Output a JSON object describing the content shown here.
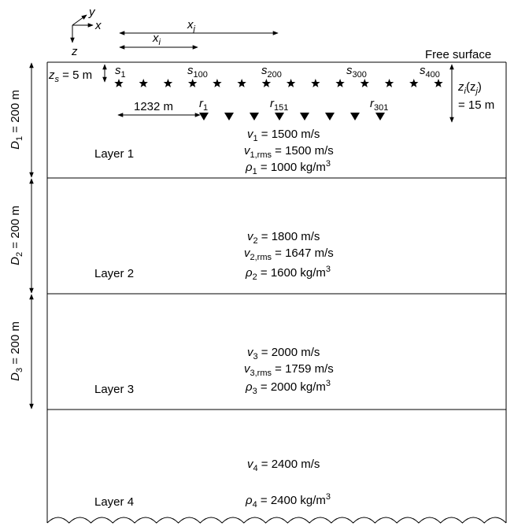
{
  "axes": {
    "x": "x",
    "y": "y",
    "z": "z"
  },
  "offsets": {
    "x_j": "x",
    "x_j_sub": "j",
    "x_i": "x",
    "x_i_sub": "i"
  },
  "free_surface": "Free surface",
  "source_depth": {
    "sym": "z",
    "sub": "s",
    "rest": " = 5 m"
  },
  "receiver_depth": {
    "line1_a": "z",
    "line1_sub": "i",
    "line1_b": "(z",
    "line1_sub2": "j",
    "line1_c": ")",
    "line2": "= 15 m"
  },
  "thicknesses": [
    {
      "sym": "D",
      "sub": "1",
      "rest": " = 200 m"
    },
    {
      "sym": "D",
      "sub": "2",
      "rest": " = 200 m"
    },
    {
      "sym": "D",
      "sub": "3",
      "rest": " = 200 m"
    }
  ],
  "source_labels": [
    {
      "sym": "s",
      "sub": "1"
    },
    {
      "sym": "s",
      "sub": "100"
    },
    {
      "sym": "s",
      "sub": "200"
    },
    {
      "sym": "s",
      "sub": "300"
    },
    {
      "sym": "s",
      "sub": "400"
    }
  ],
  "receiver_labels": [
    {
      "sym": "r",
      "sub": "1"
    },
    {
      "sym": "r",
      "sub": "151"
    },
    {
      "sym": "r",
      "sub": "301"
    }
  ],
  "receiver_offset": "1232 m",
  "star_count": 14,
  "receiver_count": 8,
  "layers": [
    {
      "name": "Layer 1",
      "v": {
        "sym": "v",
        "sub": "1",
        "rest": " = 1500 m/s"
      },
      "vrms": {
        "sym": "v",
        "sub": "1,rms",
        "rest": " = 1500 m/s"
      },
      "rho": {
        "sym": "ρ",
        "sub": "1",
        "rest": " = 1000 kg/m",
        "sup": "3"
      }
    },
    {
      "name": "Layer 2",
      "v": {
        "sym": "v",
        "sub": "2",
        "rest": " = 1800 m/s"
      },
      "vrms": {
        "sym": "v",
        "sub": "2,rms",
        "rest": " = 1647 m/s"
      },
      "rho": {
        "sym": "ρ",
        "sub": "2",
        "rest": " = 1600 kg/m",
        "sup": "3"
      }
    },
    {
      "name": "Layer 3",
      "v": {
        "sym": "v",
        "sub": "3",
        "rest": " = 2000 m/s"
      },
      "vrms": {
        "sym": "v",
        "sub": "3,rms",
        "rest": " = 1759 m/s"
      },
      "rho": {
        "sym": "ρ",
        "sub": "3",
        "rest": " = 2000 kg/m",
        "sup": "3"
      }
    },
    {
      "name": "Layer 4",
      "v": {
        "sym": "v",
        "sub": "4",
        "rest": " = 2400 m/s"
      },
      "rho": {
        "sym": "ρ",
        "sub": "4",
        "rest": " = 2400 kg/m",
        "sup": "3"
      }
    }
  ]
}
